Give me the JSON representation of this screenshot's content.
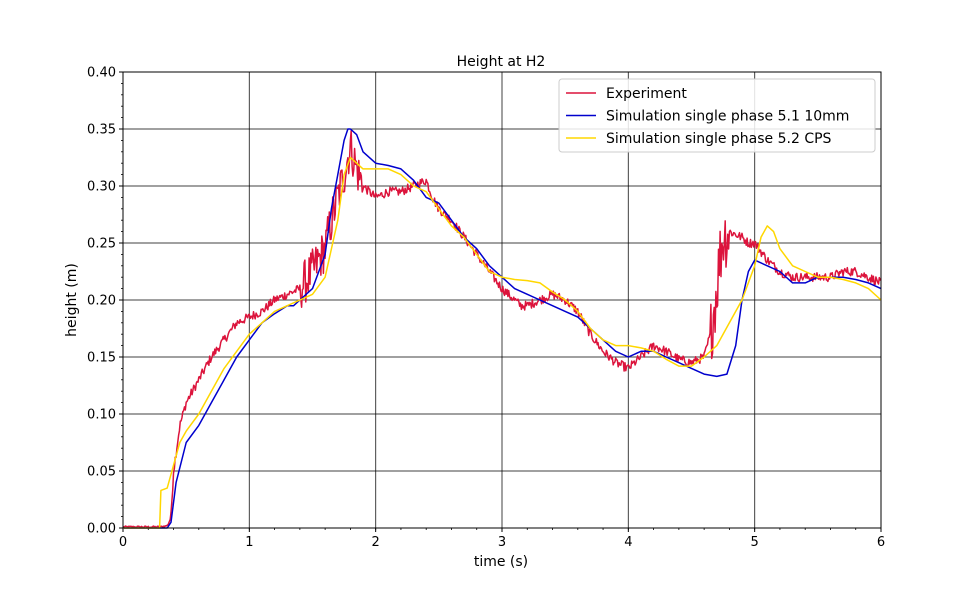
{
  "chart_data": {
    "type": "line",
    "title": "Height at H2",
    "xlabel": "time (s)",
    "ylabel": "height (m)",
    "xlim": [
      0,
      6
    ],
    "ylim": [
      0,
      0.4
    ],
    "xticks": [
      "0",
      "1",
      "2",
      "3",
      "4",
      "5",
      "6"
    ],
    "yticks": [
      "0.00",
      "0.05",
      "0.10",
      "0.15",
      "0.20",
      "0.25",
      "0.30",
      "0.35",
      "0.40"
    ],
    "grid": true,
    "legend_position": "top-right",
    "series": [
      {
        "name": "Experiment",
        "color": "#dc143c",
        "noisy": true,
        "x": [
          0,
          0.3,
          0.35,
          0.38,
          0.4,
          0.45,
          0.5,
          0.6,
          0.7,
          0.8,
          0.9,
          1.0,
          1.1,
          1.2,
          1.3,
          1.4,
          1.5,
          1.55,
          1.6,
          1.65,
          1.7,
          1.75,
          1.8,
          1.85,
          1.9,
          1.95,
          2.0,
          2.1,
          2.2,
          2.3,
          2.4,
          2.45,
          2.5,
          2.6,
          2.7,
          2.8,
          2.9,
          3.0,
          3.1,
          3.15,
          3.2,
          3.3,
          3.4,
          3.5,
          3.6,
          3.7,
          3.8,
          3.9,
          4.0,
          4.1,
          4.2,
          4.3,
          4.4,
          4.5,
          4.6,
          4.65,
          4.7,
          4.72,
          4.75,
          4.8,
          4.9,
          4.95,
          5.0,
          5.1,
          5.2,
          5.3,
          5.4,
          5.5,
          5.6,
          5.7,
          5.8,
          5.9,
          6.0
        ],
        "y": [
          0.001,
          0.001,
          0.002,
          0.01,
          0.05,
          0.09,
          0.11,
          0.13,
          0.15,
          0.165,
          0.18,
          0.185,
          0.19,
          0.2,
          0.205,
          0.21,
          0.225,
          0.235,
          0.245,
          0.27,
          0.29,
          0.31,
          0.335,
          0.315,
          0.3,
          0.295,
          0.29,
          0.295,
          0.295,
          0.3,
          0.305,
          0.29,
          0.28,
          0.27,
          0.255,
          0.24,
          0.225,
          0.21,
          0.2,
          0.195,
          0.195,
          0.2,
          0.205,
          0.2,
          0.19,
          0.17,
          0.155,
          0.145,
          0.14,
          0.15,
          0.16,
          0.155,
          0.148,
          0.145,
          0.15,
          0.17,
          0.21,
          0.235,
          0.255,
          0.26,
          0.255,
          0.25,
          0.25,
          0.235,
          0.225,
          0.22,
          0.22,
          0.22,
          0.22,
          0.225,
          0.225,
          0.22,
          0.215
        ]
      },
      {
        "name": "Simulation single phase 5.1 10mm",
        "color": "#0000cd",
        "noisy": false,
        "x": [
          0,
          0.3,
          0.35,
          0.38,
          0.42,
          0.5,
          0.6,
          0.7,
          0.8,
          0.9,
          1.0,
          1.1,
          1.2,
          1.3,
          1.35,
          1.4,
          1.5,
          1.6,
          1.65,
          1.7,
          1.75,
          1.78,
          1.8,
          1.85,
          1.9,
          2.0,
          2.1,
          2.2,
          2.3,
          2.4,
          2.5,
          2.6,
          2.7,
          2.8,
          2.9,
          3.0,
          3.1,
          3.2,
          3.3,
          3.4,
          3.5,
          3.6,
          3.7,
          3.8,
          3.9,
          4.0,
          4.1,
          4.2,
          4.3,
          4.4,
          4.5,
          4.6,
          4.7,
          4.78,
          4.85,
          4.9,
          4.95,
          5.0,
          5.1,
          5.2,
          5.3,
          5.4,
          5.5,
          5.6,
          5.7,
          5.8,
          5.9,
          6.0
        ],
        "y": [
          0,
          0,
          0,
          0.005,
          0.04,
          0.075,
          0.09,
          0.11,
          0.13,
          0.15,
          0.165,
          0.18,
          0.188,
          0.195,
          0.195,
          0.2,
          0.21,
          0.24,
          0.28,
          0.31,
          0.34,
          0.35,
          0.35,
          0.345,
          0.33,
          0.32,
          0.318,
          0.315,
          0.305,
          0.29,
          0.285,
          0.27,
          0.255,
          0.245,
          0.23,
          0.22,
          0.21,
          0.205,
          0.2,
          0.195,
          0.19,
          0.185,
          0.175,
          0.165,
          0.155,
          0.15,
          0.155,
          0.155,
          0.15,
          0.145,
          0.14,
          0.135,
          0.133,
          0.135,
          0.16,
          0.2,
          0.225,
          0.235,
          0.23,
          0.225,
          0.215,
          0.215,
          0.22,
          0.22,
          0.22,
          0.218,
          0.215,
          0.21
        ]
      },
      {
        "name": "Simulation single phase 5.2 CPS",
        "color": "#ffd700",
        "noisy": false,
        "x": [
          0,
          0.25,
          0.29,
          0.3,
          0.35,
          0.4,
          0.45,
          0.5,
          0.6,
          0.7,
          0.8,
          0.9,
          1.0,
          1.1,
          1.2,
          1.3,
          1.4,
          1.5,
          1.6,
          1.7,
          1.75,
          1.8,
          1.85,
          1.9,
          2.0,
          2.1,
          2.2,
          2.3,
          2.4,
          2.5,
          2.6,
          2.7,
          2.8,
          2.9,
          3.0,
          3.1,
          3.2,
          3.3,
          3.4,
          3.5,
          3.6,
          3.7,
          3.8,
          3.9,
          4.0,
          4.1,
          4.2,
          4.3,
          4.4,
          4.5,
          4.6,
          4.7,
          4.8,
          4.9,
          5.0,
          5.05,
          5.1,
          5.15,
          5.2,
          5.3,
          5.4,
          5.5,
          5.6,
          5.7,
          5.8,
          5.9,
          6.0
        ],
        "y": [
          0,
          0,
          0,
          0.033,
          0.035,
          0.055,
          0.075,
          0.085,
          0.1,
          0.12,
          0.14,
          0.155,
          0.17,
          0.18,
          0.19,
          0.195,
          0.2,
          0.205,
          0.22,
          0.27,
          0.31,
          0.325,
          0.32,
          0.315,
          0.315,
          0.315,
          0.31,
          0.3,
          0.295,
          0.28,
          0.265,
          0.255,
          0.24,
          0.225,
          0.22,
          0.218,
          0.217,
          0.215,
          0.207,
          0.2,
          0.19,
          0.175,
          0.165,
          0.16,
          0.16,
          0.158,
          0.155,
          0.148,
          0.142,
          0.142,
          0.15,
          0.16,
          0.18,
          0.2,
          0.23,
          0.255,
          0.265,
          0.26,
          0.245,
          0.23,
          0.225,
          0.22,
          0.22,
          0.218,
          0.215,
          0.21,
          0.2
        ]
      }
    ]
  }
}
